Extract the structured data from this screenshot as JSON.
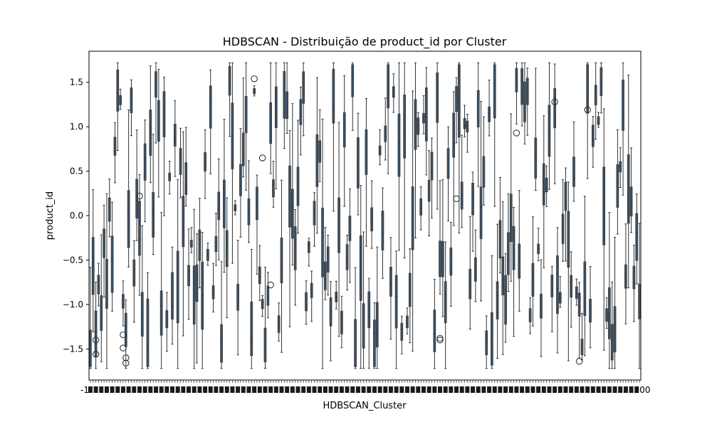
{
  "chart_data": {
    "type": "box",
    "title": "HDBSCAN - Distribuição de product_id por Cluster",
    "xlabel": "HDBSCAN_Cluster",
    "ylabel": "product_id",
    "ylim": [
      -1.85,
      1.85
    ],
    "yticks": [
      -1.5,
      -1.0,
      -0.5,
      0.0,
      0.5,
      1.0,
      1.5
    ],
    "ytick_labels": [
      "−1.5",
      "−1.0",
      "−0.5",
      "0.0",
      "0.5",
      "1.0",
      "1.5"
    ],
    "x_first_label": "-1",
    "x_last_label": "200",
    "x_categories_note": "clusters -1 to 200 (tick labels overlap)",
    "box_count": 202,
    "box_color": "#3b4f61",
    "line_color": "#333333",
    "grid": false,
    "outliers": [
      {
        "box": 2,
        "y": -1.4
      },
      {
        "box": 2,
        "y": -1.56
      },
      {
        "box": 12,
        "y": -1.34
      },
      {
        "box": 12,
        "y": -1.49
      },
      {
        "box": 13,
        "y": -1.6
      },
      {
        "box": 13,
        "y": -1.66
      },
      {
        "box": 18,
        "y": 0.22
      },
      {
        "box": 60,
        "y": 1.54
      },
      {
        "box": 63,
        "y": 0.65
      },
      {
        "box": 66,
        "y": -0.78
      },
      {
        "box": 128,
        "y": -1.38
      },
      {
        "box": 128,
        "y": -1.4
      },
      {
        "box": 134,
        "y": 0.19
      },
      {
        "box": 156,
        "y": 0.93
      },
      {
        "box": 170,
        "y": 1.28
      },
      {
        "box": 179,
        "y": -1.64
      },
      {
        "box": 182,
        "y": 1.19
      }
    ]
  }
}
